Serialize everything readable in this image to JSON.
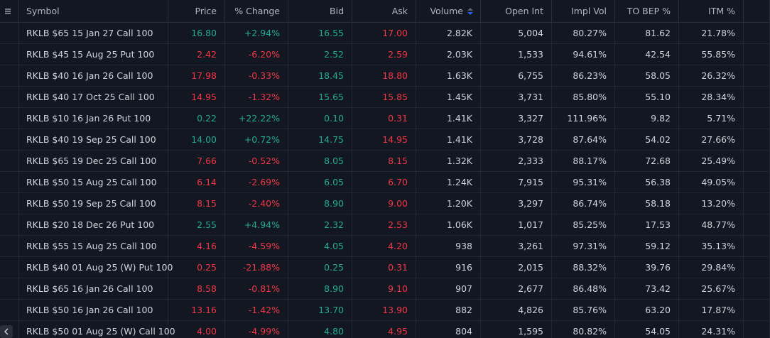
{
  "table": {
    "columns": [
      "Symbol",
      "Price",
      "% Change",
      "Bid",
      "Ask",
      "Volume",
      "Open Int",
      "Impl Vol",
      "TO BEP %",
      "ITM %"
    ],
    "rows": [
      [
        "RKLB $65 15 Jan 27 Call 100",
        "16.80",
        "+2.94%",
        "16.55",
        "17.00",
        "2.82K",
        "5,004",
        "80.27%",
        "81.62",
        "21.78%"
      ],
      [
        "RKLB $45 15 Aug 25 Put 100",
        "2.42",
        "-6.20%",
        "2.52",
        "2.59",
        "2.03K",
        "1,533",
        "94.61%",
        "42.54",
        "55.85%"
      ],
      [
        "RKLB $40 16 Jan 26 Call 100",
        "17.98",
        "-0.33%",
        "18.45",
        "18.80",
        "1.63K",
        "6,755",
        "86.23%",
        "58.05",
        "26.32%"
      ],
      [
        "RKLB $40 17 Oct 25 Call 100",
        "14.95",
        "-1.32%",
        "15.65",
        "15.85",
        "1.45K",
        "3,731",
        "85.80%",
        "55.10",
        "28.34%"
      ],
      [
        "RKLB $10 16 Jan 26 Put 100",
        "0.22",
        "+22.22%",
        "0.10",
        "0.31",
        "1.41K",
        "3,327",
        "111.96%",
        "9.82",
        "5.71%"
      ],
      [
        "RKLB $40 19 Sep 25 Call 100",
        "14.00",
        "+0.72%",
        "14.75",
        "14.95",
        "1.41K",
        "3,728",
        "87.64%",
        "54.02",
        "27.66%"
      ],
      [
        "RKLB $65 19 Dec 25 Call 100",
        "7.66",
        "-0.52%",
        "8.05",
        "8.15",
        "1.32K",
        "2,333",
        "88.17%",
        "72.68",
        "25.49%"
      ],
      [
        "RKLB $50 15 Aug 25 Call 100",
        "6.14",
        "-2.69%",
        "6.05",
        "6.70",
        "1.24K",
        "7,915",
        "95.31%",
        "56.38",
        "49.05%"
      ],
      [
        "RKLB $50 19 Sep 25 Call 100",
        "8.15",
        "-2.40%",
        "8.90",
        "9.00",
        "1.20K",
        "3,297",
        "86.74%",
        "58.18",
        "13.20%"
      ],
      [
        "RKLB $20 18 Dec 26 Put 100",
        "2.55",
        "+4.94%",
        "2.32",
        "2.53",
        "1.06K",
        "1,017",
        "85.25%",
        "17.53",
        "48.77%"
      ],
      [
        "RKLB $55 15 Aug 25 Call 100",
        "4.16",
        "-4.59%",
        "4.05",
        "4.20",
        "938",
        "3,261",
        "97.31%",
        "59.12",
        "35.13%"
      ],
      [
        "RKLB $40 01 Aug 25 (W) Put 100",
        "0.25",
        "-21.88%",
        "0.25",
        "0.31",
        "916",
        "2,015",
        "88.32%",
        "39.76",
        "29.84%"
      ],
      [
        "RKLB $65 16 Jan 26 Call 100",
        "8.58",
        "-0.81%",
        "8.90",
        "9.10",
        "907",
        "2,677",
        "86.48%",
        "73.42",
        "25.67%"
      ],
      [
        "RKLB $50 16 Jan 26 Call 100",
        "13.16",
        "-1.42%",
        "13.70",
        "13.90",
        "882",
        "4,826",
        "85.76%",
        "63.20",
        "17.87%"
      ],
      [
        "RKLB $50 01 Aug 25 (W) Call 100",
        "4.00",
        "-4.99%",
        "4.80",
        "4.95",
        "804",
        "1,595",
        "80.82%",
        "54.05",
        "24.31%"
      ]
    ]
  }
}
